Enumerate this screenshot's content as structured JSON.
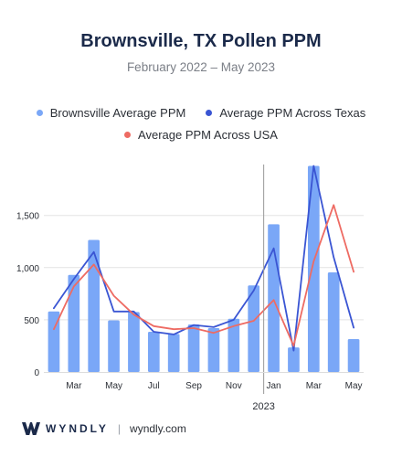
{
  "header": {
    "title": "Brownsville, TX Pollen PPM",
    "subtitle": "February 2022 – May 2023"
  },
  "footer": {
    "brand": "WYNDLY",
    "separator": "|",
    "url": "wyndly.com"
  },
  "colors": {
    "bar": "#7aa7f7",
    "texas": "#3a55d3",
    "usa": "#ee6b63",
    "axis": "#2b2f36",
    "grid": "#e3e3e3",
    "divider": "#9a9a9a"
  },
  "chart_data": {
    "type": "bar",
    "x": [
      "2022-02",
      "2022-03",
      "2022-04",
      "2022-05",
      "2022-06",
      "2022-07",
      "2022-08",
      "2022-09",
      "2022-10",
      "2022-11",
      "2022-12",
      "2023-01",
      "2023-02",
      "2023-03",
      "2023-04",
      "2023-05"
    ],
    "x_tick_labels": [
      "Mar",
      "May",
      "Jul",
      "Sep",
      "Nov",
      "Jan",
      "Mar",
      "May"
    ],
    "year_label": "2023",
    "y_tick_labels": [
      "0",
      "500",
      "1,000",
      "1,500"
    ],
    "ylim": [
      0,
      2000
    ],
    "series": [
      {
        "name": "Brownsville Average PPM",
        "type": "bar",
        "values": [
          580,
          930,
          1265,
          495,
          575,
          385,
          365,
          455,
          420,
          510,
          830,
          1415,
          235,
          1975,
          955,
          315
        ]
      },
      {
        "name": "Average PPM Across Texas",
        "type": "line",
        "values": [
          610,
          890,
          1150,
          580,
          580,
          385,
          360,
          450,
          430,
          500,
          780,
          1185,
          205,
          1975,
          1100,
          425
        ]
      },
      {
        "name": "Average PPM Across USA",
        "type": "line",
        "values": [
          410,
          820,
          1030,
          730,
          550,
          440,
          410,
          420,
          375,
          440,
          490,
          690,
          250,
          1060,
          1600,
          960
        ]
      }
    ],
    "grid": true
  }
}
